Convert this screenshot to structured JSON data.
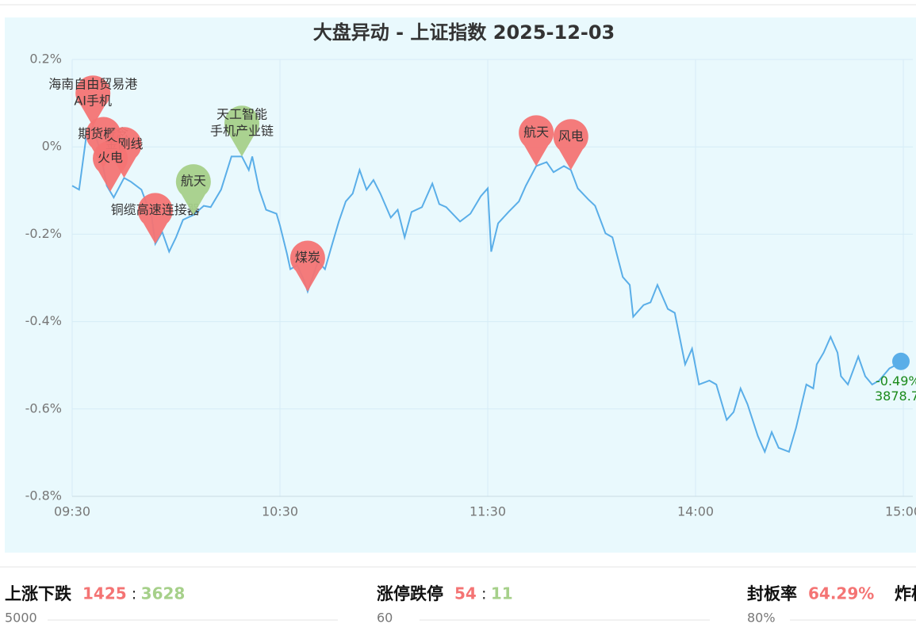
{
  "chart_data": {
    "type": "line",
    "title": "大盘异动 - 上证指数 2025-12-03",
    "x": [
      0,
      2,
      4,
      6,
      8,
      10,
      12,
      15,
      17,
      20,
      23,
      24,
      26,
      28,
      30,
      32,
      35,
      38,
      40,
      43,
      46,
      49,
      51,
      52,
      54,
      56,
      59,
      60,
      62,
      63,
      65,
      67,
      68,
      71,
      73,
      75,
      77,
      79,
      81,
      83,
      85,
      87,
      89,
      92,
      94,
      96,
      98,
      101,
      104,
      106,
      108,
      112,
      115,
      118,
      120,
      121,
      123,
      126,
      129,
      131,
      134,
      137,
      139,
      142,
      144,
      146,
      149,
      151,
      154,
      156,
      159,
      161,
      162,
      165,
      167,
      169,
      172,
      174,
      177,
      179,
      181,
      184,
      186,
      189,
      191,
      193,
      195,
      198,
      200,
      202,
      204,
      207,
      209,
      212,
      214,
      215,
      217,
      219,
      221,
      222,
      224,
      227,
      229,
      231,
      233,
      236,
      240
    ],
    "series": [
      {
        "name": "上证指数",
        "color": "#5aaee8",
        "values": [
          -0.089,
          -0.098,
          0.02,
          0.047,
          -0.007,
          -0.089,
          -0.116,
          -0.071,
          -0.08,
          -0.098,
          -0.162,
          -0.222,
          -0.195,
          -0.24,
          -0.207,
          -0.167,
          -0.156,
          -0.135,
          -0.138,
          -0.098,
          -0.022,
          -0.022,
          -0.053,
          -0.022,
          -0.098,
          -0.144,
          -0.153,
          -0.18,
          -0.244,
          -0.28,
          -0.271,
          -0.307,
          -0.331,
          -0.262,
          -0.28,
          -0.225,
          -0.171,
          -0.125,
          -0.107,
          -0.053,
          -0.098,
          -0.076,
          -0.107,
          -0.162,
          -0.144,
          -0.207,
          -0.149,
          -0.138,
          -0.084,
          -0.131,
          -0.138,
          -0.171,
          -0.153,
          -0.113,
          -0.095,
          -0.24,
          -0.175,
          -0.149,
          -0.125,
          -0.089,
          -0.044,
          -0.035,
          -0.058,
          -0.044,
          -0.053,
          -0.095,
          -0.12,
          -0.135,
          -0.198,
          -0.207,
          -0.298,
          -0.316,
          -0.389,
          -0.362,
          -0.356,
          -0.316,
          -0.371,
          -0.38,
          -0.498,
          -0.462,
          -0.544,
          -0.535,
          -0.544,
          -0.625,
          -0.607,
          -0.553,
          -0.589,
          -0.662,
          -0.698,
          -0.653,
          -0.689,
          -0.698,
          -0.644,
          -0.544,
          -0.553,
          -0.498,
          -0.471,
          -0.435,
          -0.471,
          -0.525,
          -0.544,
          -0.48,
          -0.525,
          -0.544,
          -0.535,
          -0.507,
          -0.491
        ]
      }
    ],
    "xlim": [
      0,
      240
    ],
    "xticks": [
      {
        "value": 0,
        "label": "09:30"
      },
      {
        "value": 60,
        "label": "10:30"
      },
      {
        "value": 120,
        "label": "11:30"
      },
      {
        "value": 180,
        "label": "14:00"
      },
      {
        "value": 240,
        "label": "15:00"
      }
    ],
    "ylim": [
      -0.8,
      0.2
    ],
    "yticks": [
      {
        "value": 0.2,
        "label": "0.2%"
      },
      {
        "value": 0,
        "label": "0%"
      },
      {
        "value": -0.2,
        "label": "-0.2%"
      },
      {
        "value": -0.4,
        "label": "-0.4%"
      },
      {
        "value": -0.6,
        "label": "-0.6%"
      },
      {
        "value": -0.8,
        "label": "-0.8%"
      }
    ],
    "grid": true,
    "annotations": [
      {
        "x": 6,
        "color": "#f47474",
        "labels": [
          "海南自由贸易港",
          "AI手机"
        ]
      },
      {
        "x": 9,
        "color": "#f47474",
        "labels": [
          "期货概念"
        ]
      },
      {
        "x": 15,
        "color": "#f47474",
        "labels": [
          "金刚线"
        ]
      },
      {
        "x": 11,
        "color": "#f47474",
        "labels": [
          "火电"
        ]
      },
      {
        "x": 24,
        "color": "#f47474",
        "labels": [
          "铜缆高速连接器"
        ]
      },
      {
        "x": 35,
        "color": "#a6d08a",
        "labels": [
          "航天"
        ]
      },
      {
        "x": 49,
        "color": "#a6d08a",
        "labels": [
          "天工智能",
          "手机产业链"
        ]
      },
      {
        "x": 68,
        "color": "#f47474",
        "labels": [
          "煤炭"
        ]
      },
      {
        "x": 134,
        "color": "#f47474",
        "labels": [
          "航天"
        ]
      },
      {
        "x": 144,
        "color": "#f47474",
        "labels": [
          "风电"
        ]
      }
    ],
    "close_change": "-0.49%",
    "close_price": "3878.7"
  },
  "stats": [
    {
      "name": "上涨下跌",
      "up": "1425",
      "down": "3628",
      "axis_top": "5000"
    },
    {
      "name": "涨停跌停",
      "up": "54",
      "down": "11",
      "axis_top": "60"
    },
    {
      "name": "封板率",
      "up": "64.29%",
      "axis_top": "80%"
    },
    {
      "name": "炸板"
    }
  ]
}
